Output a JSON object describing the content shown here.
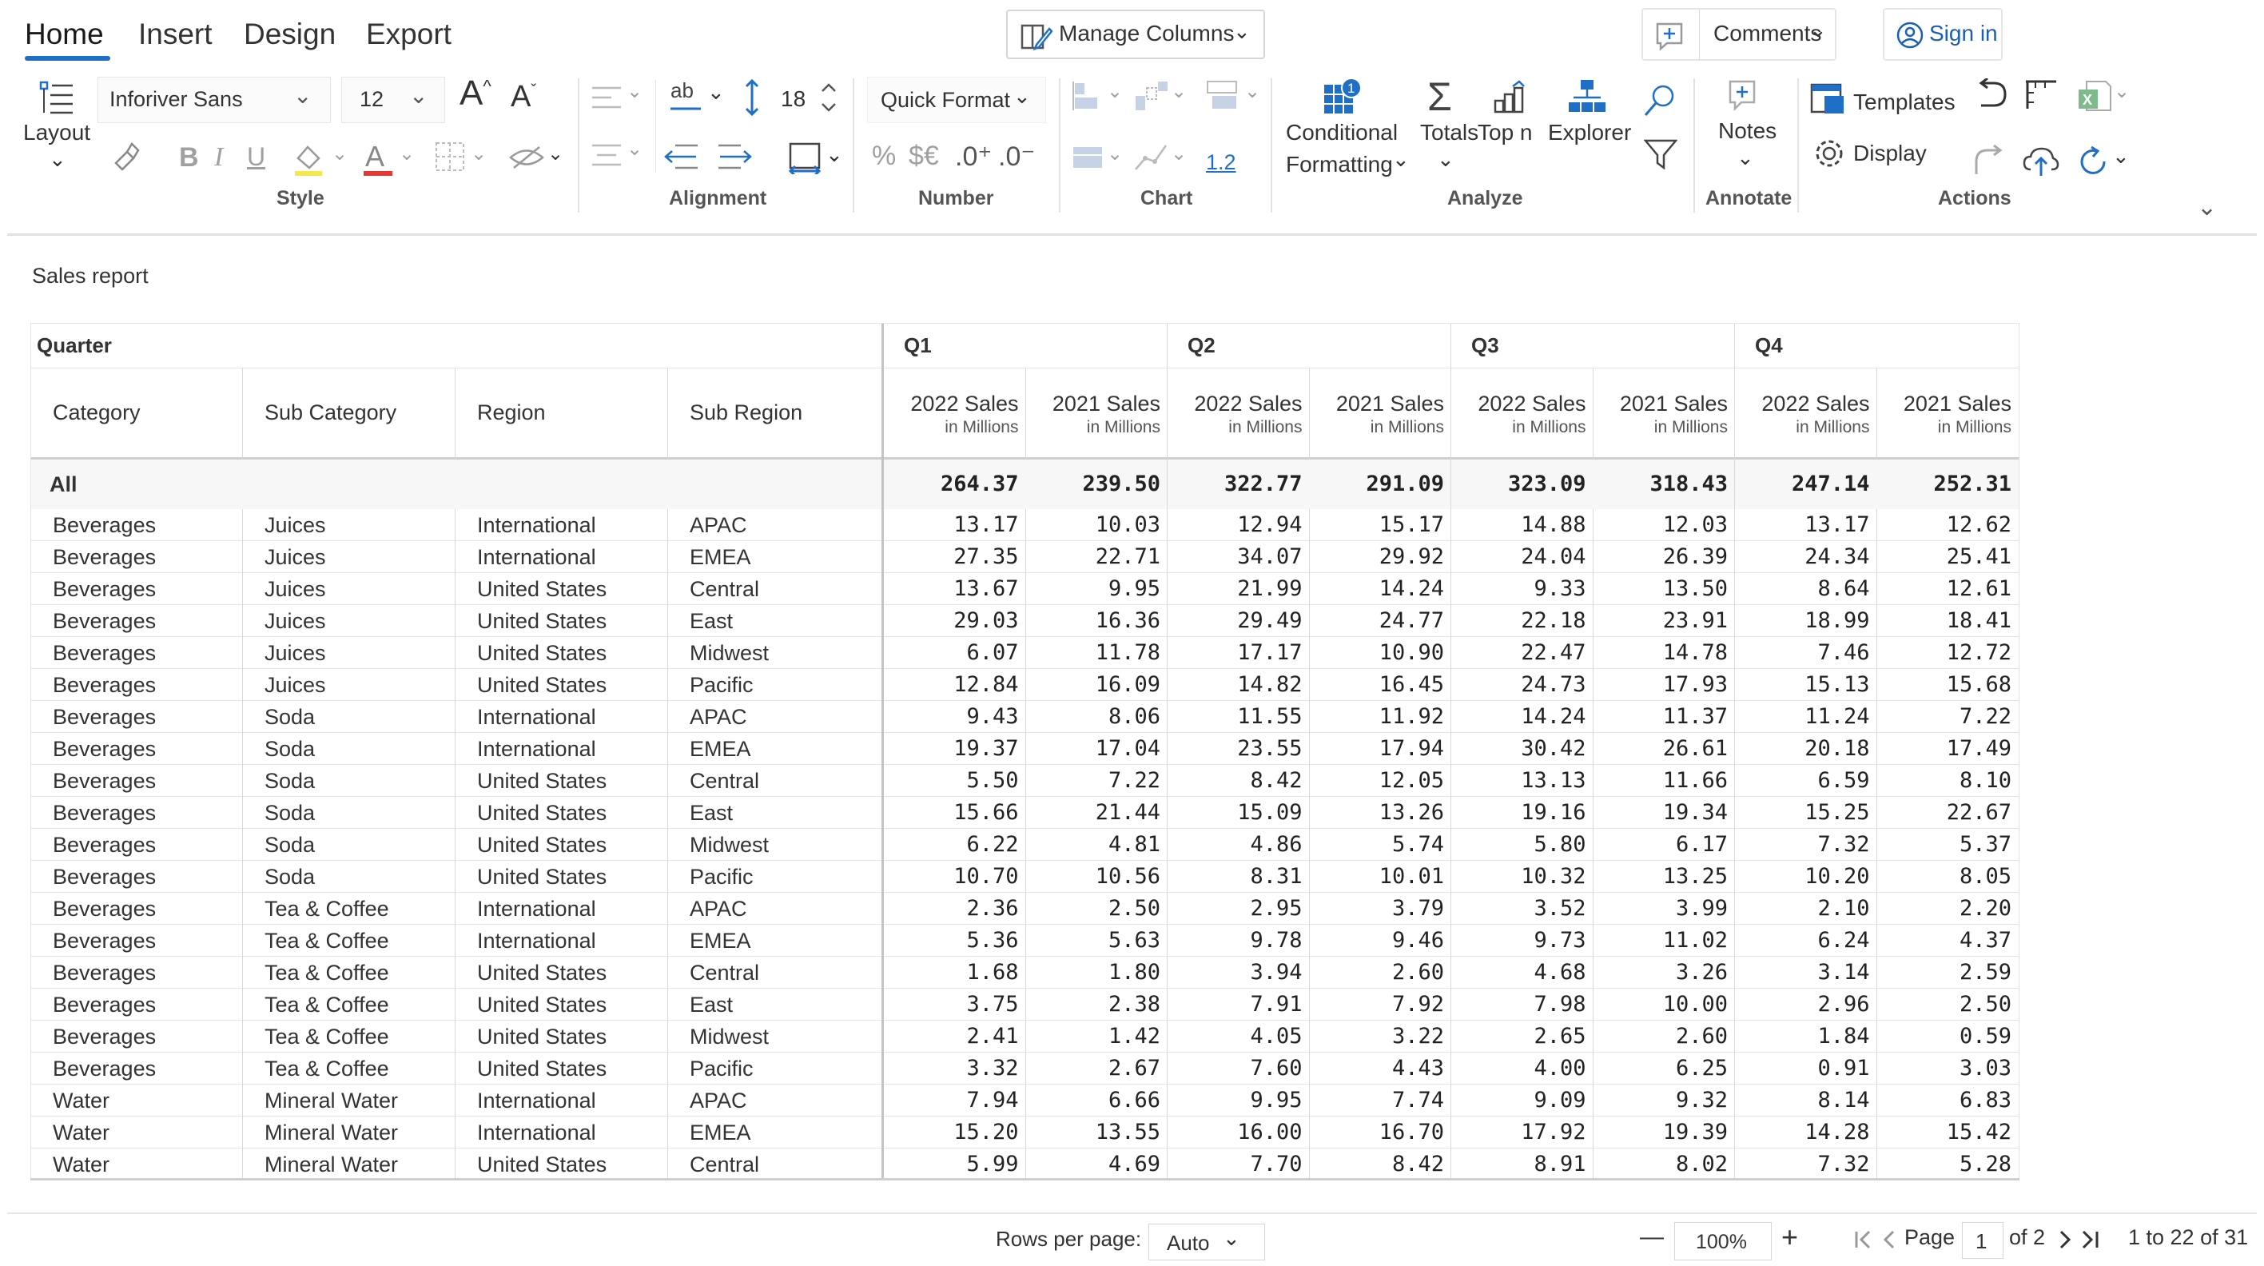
{
  "ribbon": {
    "tabs": [
      "Home",
      "Insert",
      "Design",
      "Export"
    ],
    "manage_columns": "Manage Columns",
    "comments": "Comments",
    "sign_in": "Sign in",
    "layout_label": "Layout",
    "font_name": "Inforiver Sans",
    "font_size": "12",
    "row_height": "18",
    "quick_format": "Quick Format",
    "decimal_value": "1.2",
    "conditional": "Conditional",
    "formatting": "Formatting",
    "totals": "Totals",
    "topn": "Top n",
    "explorer": "Explorer",
    "notes": "Notes",
    "templates": "Templates",
    "display": "Display",
    "badge": "1",
    "percent": "%",
    "currency": "$€",
    "dec_inc": ".0⁺",
    "dec_dec": ".0⁻",
    "groups": {
      "style": "Style",
      "alignment": "Alignment",
      "number": "Number",
      "chart": "Chart",
      "analyze": "Analyze",
      "annotate": "Annotate",
      "actions": "Actions"
    },
    "accent": "#1e6fc5"
  },
  "report": {
    "title": "Sales report",
    "quarter_label": "Quarter",
    "quarters": [
      "Q1",
      "Q2",
      "Q3",
      "Q4"
    ],
    "dim_headers": [
      "Category",
      "Sub Category",
      "Region",
      "Sub Region"
    ],
    "measure_headers": [
      "2022 Sales",
      "2021 Sales"
    ],
    "measure_unit": "in Millions",
    "total_label": "All",
    "totals": [
      "264.37",
      "239.50",
      "322.77",
      "291.09",
      "323.09",
      "318.43",
      "247.14",
      "252.31"
    ],
    "rows": [
      [
        "Beverages",
        "Juices",
        "International",
        "APAC",
        "13.17",
        "10.03",
        "12.94",
        "15.17",
        "14.88",
        "12.03",
        "13.17",
        "12.62"
      ],
      [
        "Beverages",
        "Juices",
        "International",
        "EMEA",
        "27.35",
        "22.71",
        "34.07",
        "29.92",
        "24.04",
        "26.39",
        "24.34",
        "25.41"
      ],
      [
        "Beverages",
        "Juices",
        "United States",
        "Central",
        "13.67",
        "9.95",
        "21.99",
        "14.24",
        "9.33",
        "13.50",
        "8.64",
        "12.61"
      ],
      [
        "Beverages",
        "Juices",
        "United States",
        "East",
        "29.03",
        "16.36",
        "29.49",
        "24.77",
        "22.18",
        "23.91",
        "18.99",
        "18.41"
      ],
      [
        "Beverages",
        "Juices",
        "United States",
        "Midwest",
        "6.07",
        "11.78",
        "17.17",
        "10.90",
        "22.47",
        "14.78",
        "7.46",
        "12.72"
      ],
      [
        "Beverages",
        "Juices",
        "United States",
        "Pacific",
        "12.84",
        "16.09",
        "14.82",
        "16.45",
        "24.73",
        "17.93",
        "15.13",
        "15.68"
      ],
      [
        "Beverages",
        "Soda",
        "International",
        "APAC",
        "9.43",
        "8.06",
        "11.55",
        "11.92",
        "14.24",
        "11.37",
        "11.24",
        "7.22"
      ],
      [
        "Beverages",
        "Soda",
        "International",
        "EMEA",
        "19.37",
        "17.04",
        "23.55",
        "17.94",
        "30.42",
        "26.61",
        "20.18",
        "17.49"
      ],
      [
        "Beverages",
        "Soda",
        "United States",
        "Central",
        "5.50",
        "7.22",
        "8.42",
        "12.05",
        "13.13",
        "11.66",
        "6.59",
        "8.10"
      ],
      [
        "Beverages",
        "Soda",
        "United States",
        "East",
        "15.66",
        "21.44",
        "15.09",
        "13.26",
        "19.16",
        "19.34",
        "15.25",
        "22.67"
      ],
      [
        "Beverages",
        "Soda",
        "United States",
        "Midwest",
        "6.22",
        "4.81",
        "4.86",
        "5.74",
        "5.80",
        "6.17",
        "7.32",
        "5.37"
      ],
      [
        "Beverages",
        "Soda",
        "United States",
        "Pacific",
        "10.70",
        "10.56",
        "8.31",
        "10.01",
        "10.32",
        "13.25",
        "10.20",
        "8.05"
      ],
      [
        "Beverages",
        "Tea & Coffee",
        "International",
        "APAC",
        "2.36",
        "2.50",
        "2.95",
        "3.79",
        "3.52",
        "3.99",
        "2.10",
        "2.20"
      ],
      [
        "Beverages",
        "Tea & Coffee",
        "International",
        "EMEA",
        "5.36",
        "5.63",
        "9.78",
        "9.46",
        "9.73",
        "11.02",
        "6.24",
        "4.37"
      ],
      [
        "Beverages",
        "Tea & Coffee",
        "United States",
        "Central",
        "1.68",
        "1.80",
        "3.94",
        "2.60",
        "4.68",
        "3.26",
        "3.14",
        "2.59"
      ],
      [
        "Beverages",
        "Tea & Coffee",
        "United States",
        "East",
        "3.75",
        "2.38",
        "7.91",
        "7.92",
        "7.98",
        "10.00",
        "2.96",
        "2.50"
      ],
      [
        "Beverages",
        "Tea & Coffee",
        "United States",
        "Midwest",
        "2.41",
        "1.42",
        "4.05",
        "3.22",
        "2.65",
        "2.60",
        "1.84",
        "0.59"
      ],
      [
        "Beverages",
        "Tea & Coffee",
        "United States",
        "Pacific",
        "3.32",
        "2.67",
        "7.60",
        "4.43",
        "4.00",
        "6.25",
        "0.91",
        "3.03"
      ],
      [
        "Water",
        "Mineral Water",
        "International",
        "APAC",
        "7.94",
        "6.66",
        "9.95",
        "7.74",
        "9.09",
        "9.32",
        "8.14",
        "6.83"
      ],
      [
        "Water",
        "Mineral Water",
        "International",
        "EMEA",
        "15.20",
        "13.55",
        "16.00",
        "16.70",
        "17.92",
        "19.39",
        "14.28",
        "15.42"
      ],
      [
        "Water",
        "Mineral Water",
        "United States",
        "Central",
        "5.99",
        "4.69",
        "7.70",
        "8.42",
        "8.91",
        "8.02",
        "7.32",
        "5.28"
      ]
    ]
  },
  "footer": {
    "rows_per_page_label": "Rows per page:",
    "rows_per_page_value": "Auto",
    "zoom": "100%",
    "zoom_minus": "—",
    "zoom_plus": "+",
    "page_label": "Page",
    "page_value": "1",
    "of_pages": "of 2",
    "range": "1 to 22 of 31"
  }
}
